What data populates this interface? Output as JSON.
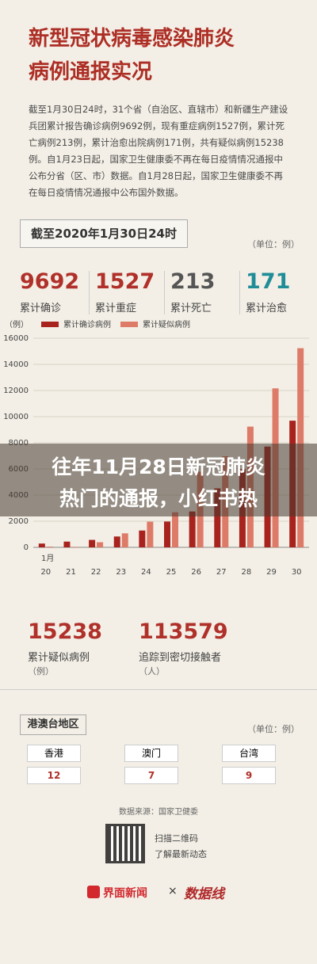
{
  "header": {
    "title_lines": [
      "新型冠状病毒感染肺炎",
      "病例通报实况"
    ],
    "paragraph": "截至1月30日24时，31个省（自治区、直辖市）和新疆生产建设兵团累计报告确诊病例9692例，现有重症病例1527例，累计死亡病例213例，累计治愈出院病例171例，共有疑似病例15238例。自1月23日起，国家卫生健康委不再在每日疫情情况通报中公布分省（区、市）数据。自1月28日起，国家卫生健康委不再在每日疫情情况通报中公布国外数据。"
  },
  "date_box": "截至2020年1月30日24时",
  "unit": "（单位：例）",
  "stats": [
    {
      "value": 9692,
      "label": "累计确诊"
    },
    {
      "value": 1527,
      "label": "累计重症"
    },
    {
      "value": 213,
      "label": "累计死亡"
    },
    {
      "value": 171,
      "label": "累计治愈"
    }
  ],
  "chart_data": {
    "type": "bar",
    "y_unit": "（例）",
    "month_label": "1月",
    "categories": [
      "20",
      "21",
      "22",
      "23",
      "24",
      "25",
      "26",
      "27",
      "28",
      "29",
      "30"
    ],
    "series": [
      {
        "name": "累计确诊病例",
        "color": "#a8231d",
        "values": [
          291,
          440,
          571,
          830,
          1287,
          1975,
          2744,
          4515,
          5974,
          7711,
          9692
        ]
      },
      {
        "name": "累计疑似病例",
        "color": "#de7b68",
        "values": [
          54,
          37,
          393,
          1072,
          1965,
          2684,
          5794,
          6973,
          9239,
          12167,
          15238
        ]
      }
    ],
    "ylim": [
      0,
      16000
    ],
    "yticks": [
      0,
      2000,
      4000,
      6000,
      8000,
      10000,
      12000,
      14000,
      16000
    ],
    "grid": true
  },
  "overlay_lines": [
    "往年11月28日新冠肺炎",
    "热门的通报，小红书热"
  ],
  "stats2": [
    {
      "value": 15238,
      "label": "累计疑似病例",
      "unit": "（例）"
    },
    {
      "value": 113579,
      "label": "追踪到密切接触者",
      "unit": "（人）"
    }
  ],
  "regions": {
    "title": "港澳台地区",
    "unit": "（单位：例）",
    "items": [
      {
        "name": "香港",
        "value": 12
      },
      {
        "name": "澳门",
        "value": 7
      },
      {
        "name": "台湾",
        "value": 9
      }
    ]
  },
  "footer": {
    "source": "数据来源：国家卫健委",
    "qr_lines": [
      "扫描二维码",
      "了解最新动态"
    ],
    "brand": "界面新闻",
    "cross": "×",
    "partner": "数据线"
  }
}
